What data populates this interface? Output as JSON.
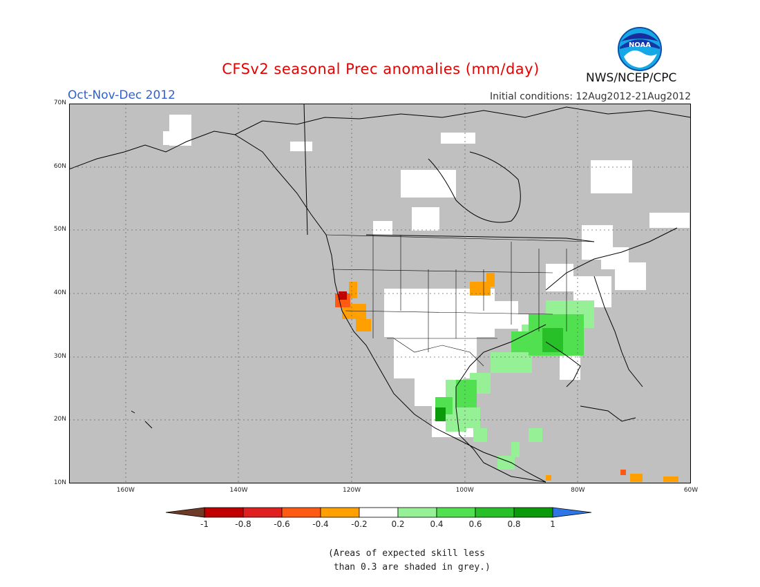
{
  "header": {
    "title": "CFSv2 seasonal Prec anomalies (mm/day)",
    "season": "Oct-Nov-Dec 2012",
    "initial_conditions": "Initial conditions: 12Aug2012-21Aug2012",
    "agency": "NWS/NCEP/CPC",
    "logo_text": "NOAA"
  },
  "map": {
    "lat_labels": [
      "70N",
      "60N",
      "50N",
      "40N",
      "30N",
      "20N",
      "10N"
    ],
    "lon_labels": [
      "160W",
      "140W",
      "120W",
      "100W",
      "80W",
      "60W"
    ],
    "lat_range": [
      10,
      70
    ],
    "lon_range": [
      -170,
      -60
    ],
    "background_color": "#c0c0c0",
    "grid": "dotted"
  },
  "colorbar": {
    "labels": [
      "-1",
      "-0.8",
      "-0.6",
      "-0.4",
      "-0.2",
      "0.2",
      "0.4",
      "0.6",
      "0.8",
      "1"
    ],
    "colors": [
      "#6e3b27",
      "#c00000",
      "#e02020",
      "#ff5a14",
      "#ffa000",
      "#ffffff",
      "#96f096",
      "#50e050",
      "#28c028",
      "#0a9a0a",
      "#2e76e6"
    ]
  },
  "note": {
    "line1": "(Areas of expected skill less",
    "line2": " than 0.3 are shaded in grey.)"
  }
}
